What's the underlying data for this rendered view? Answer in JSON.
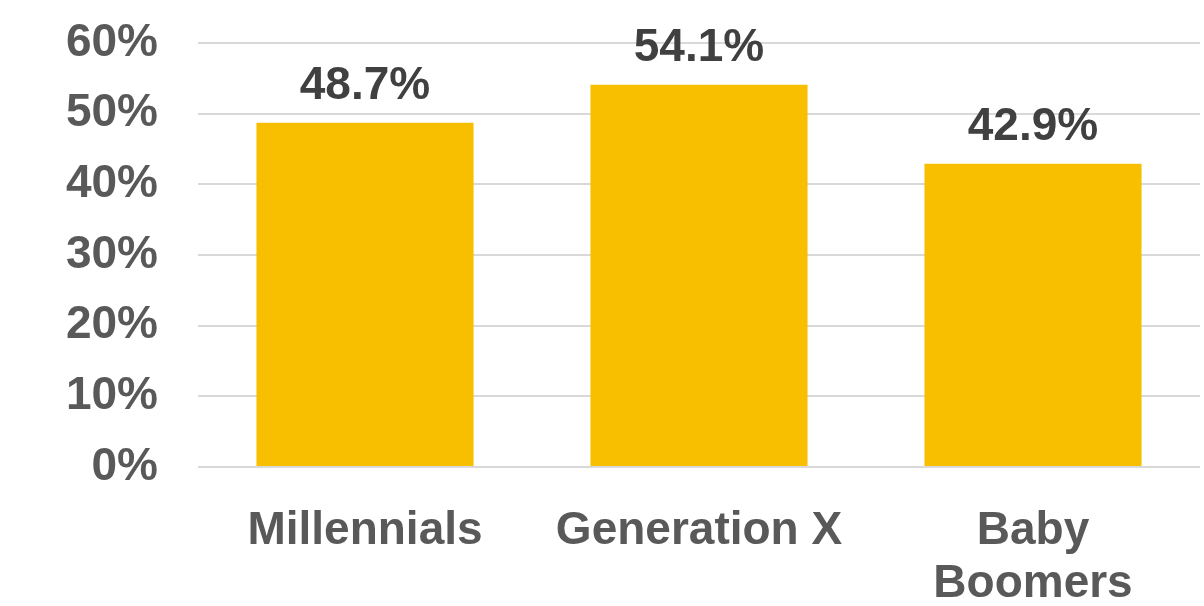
{
  "chart_data": {
    "type": "bar",
    "categories": [
      "Millennials",
      "Generation X",
      "Baby Boomers"
    ],
    "values": [
      48.7,
      54.1,
      42.9
    ],
    "value_labels": [
      "48.7%",
      "54.1%",
      "42.9%"
    ],
    "color": "#f8bf00",
    "ylim": [
      0,
      60
    ],
    "yticks": [
      {
        "value": 0,
        "label": "0%"
      },
      {
        "value": 10,
        "label": "10%"
      },
      {
        "value": 20,
        "label": "20%"
      },
      {
        "value": 30,
        "label": "30%"
      },
      {
        "value": 40,
        "label": "40%"
      },
      {
        "value": 50,
        "label": "50%"
      },
      {
        "value": 60,
        "label": "60%"
      }
    ],
    "grid": "y"
  }
}
